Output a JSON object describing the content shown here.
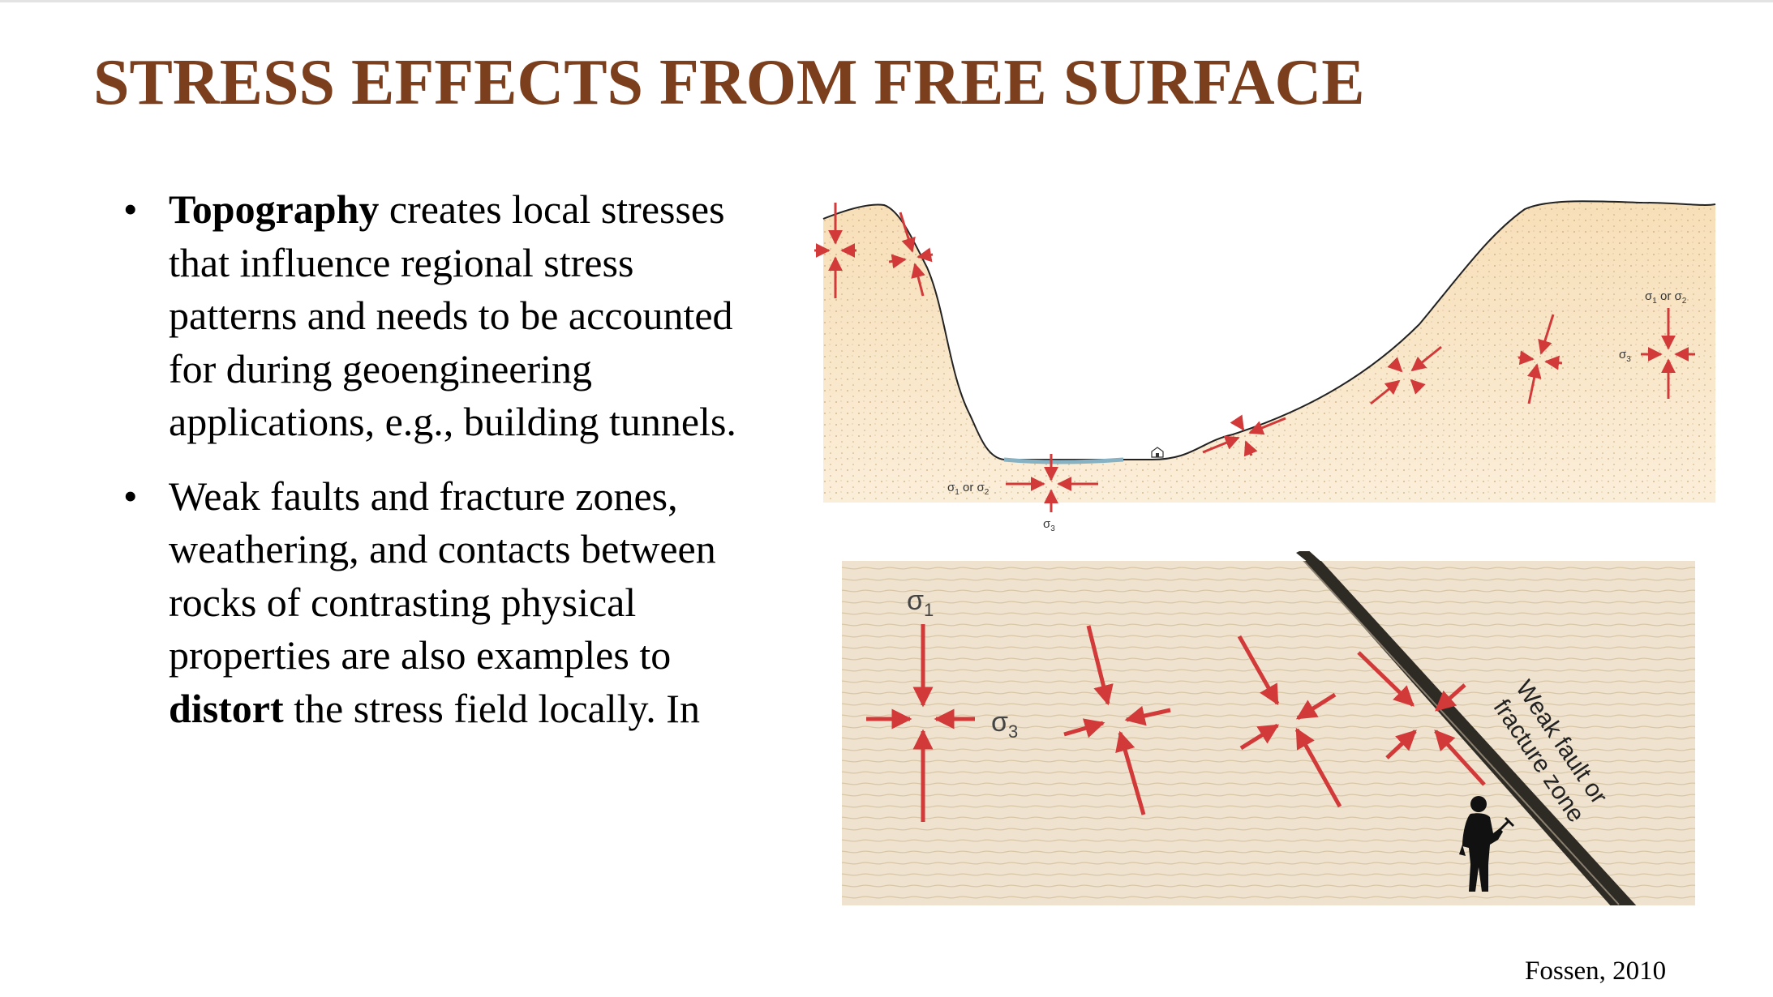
{
  "slide": {
    "title": "STRESS EFFECTS FROM FREE SURFACE",
    "bullets": [
      {
        "bold": "Topography",
        "text": " creates local stresses that influence regional stress patterns and needs to be accounted for during geoengineering applications, e.g., building tunnels."
      },
      {
        "pre": "Weak faults and fracture zones, weathering, and contacts between rocks of contrasting physical properties are also examples to ",
        "bold": "distort",
        "post": " the stress field locally. In"
      }
    ],
    "credit": "Fossen, 2010"
  },
  "figure_top": {
    "label_left_sig": "σ",
    "label_left_sub": "1",
    "label_left_or": " or ",
    "label_left_sig2": "σ",
    "label_left_sub2": "2",
    "label_bottom_sig": "σ",
    "label_bottom_sub": "3",
    "label_right_sig": "σ",
    "label_right_sub": "1",
    "label_right_or": " or ",
    "label_right_sig2": "σ",
    "label_right_sub2": "2",
    "label_right3_sig": "σ",
    "label_right3_sub": "3"
  },
  "figure_bottom": {
    "sigma1_sig": "σ",
    "sigma1_sub": "1",
    "sigma3_sig": "σ",
    "sigma3_sub": "3",
    "fault_label_line1": "Weak fault or",
    "fault_label_line2": "fracture zone"
  },
  "colors": {
    "title": "#7b3f1d",
    "arrow": "#d23a3a",
    "sand": "#f6e3c2",
    "layered_rock": "#efe2cc",
    "fault": "#2e2a24",
    "water": "#a9c9d6"
  },
  "icons": [
    "house-icon",
    "person-with-hammer-icon"
  ]
}
